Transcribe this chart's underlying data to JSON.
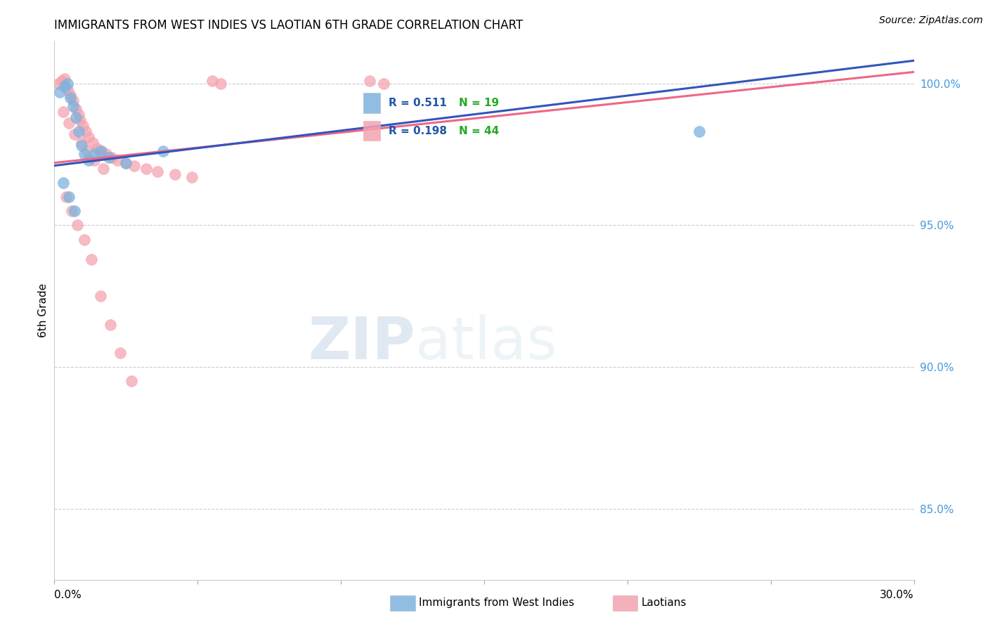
{
  "title": "IMMIGRANTS FROM WEST INDIES VS LAOTIAN 6TH GRADE CORRELATION CHART",
  "source": "Source: ZipAtlas.com",
  "ylabel": "6th Grade",
  "right_ytick_labels": [
    "85.0%",
    "90.0%",
    "95.0%",
    "100.0%"
  ],
  "right_ytick_values": [
    85.0,
    90.0,
    95.0,
    100.0
  ],
  "xmin": 0.0,
  "xmax": 30.0,
  "ymin": 82.5,
  "ymax": 101.5,
  "legend_blue_r": "0.511",
  "legend_blue_n": "19",
  "legend_pink_r": "0.198",
  "legend_pink_n": "44",
  "watermark_zip": "ZIP",
  "watermark_atlas": "atlas",
  "blue_color": "#7EB2DD",
  "pink_color": "#F4A4B0",
  "blue_line_color": "#3355BB",
  "pink_line_color": "#EE6688",
  "blue_line_x0": 0.0,
  "blue_line_y0": 97.1,
  "blue_line_x1": 30.0,
  "blue_line_y1": 100.8,
  "pink_line_x0": 0.0,
  "pink_line_y0": 97.2,
  "pink_line_x1": 30.0,
  "pink_line_y1": 100.4,
  "blue_x": [
    0.2,
    0.35,
    0.45,
    0.55,
    0.65,
    0.75,
    0.85,
    0.95,
    1.05,
    1.2,
    1.4,
    1.6,
    1.9,
    2.5,
    3.8,
    0.3,
    0.5,
    0.7,
    22.5
  ],
  "blue_y": [
    99.7,
    99.9,
    100.0,
    99.5,
    99.2,
    98.8,
    98.3,
    97.8,
    97.5,
    97.3,
    97.5,
    97.6,
    97.4,
    97.2,
    97.6,
    96.5,
    96.0,
    95.5,
    98.3
  ],
  "pink_x": [
    0.15,
    0.25,
    0.35,
    0.45,
    0.55,
    0.65,
    0.75,
    0.85,
    0.9,
    1.0,
    1.1,
    1.2,
    1.35,
    1.5,
    1.65,
    1.8,
    2.0,
    2.2,
    2.5,
    2.8,
    3.2,
    3.6,
    4.2,
    4.8,
    0.3,
    0.5,
    0.7,
    0.95,
    1.15,
    1.4,
    1.7,
    0.4,
    0.6,
    0.8,
    1.05,
    1.3,
    1.6,
    1.95,
    2.3,
    2.7,
    5.5,
    5.8,
    11.0,
    11.5
  ],
  "pink_y": [
    100.0,
    100.1,
    100.15,
    99.8,
    99.6,
    99.4,
    99.1,
    98.9,
    98.7,
    98.5,
    98.3,
    98.1,
    97.9,
    97.7,
    97.6,
    97.5,
    97.4,
    97.3,
    97.2,
    97.1,
    97.0,
    96.9,
    96.8,
    96.7,
    99.0,
    98.6,
    98.2,
    97.9,
    97.6,
    97.3,
    97.0,
    96.0,
    95.5,
    95.0,
    94.5,
    93.8,
    92.5,
    91.5,
    90.5,
    89.5,
    100.1,
    100.0,
    100.1,
    100.0
  ]
}
